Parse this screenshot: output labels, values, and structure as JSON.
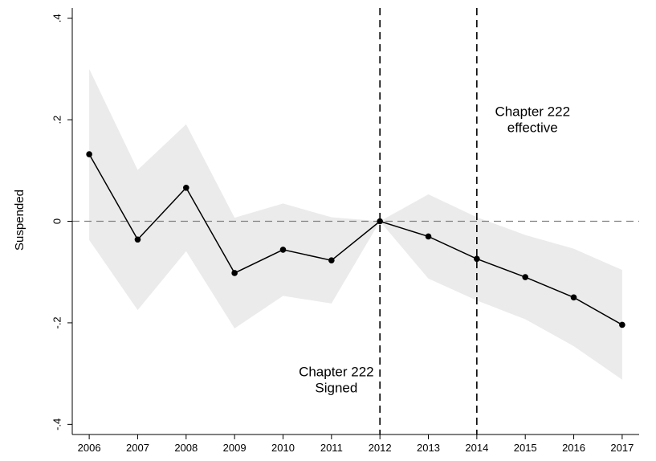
{
  "chart_data": {
    "type": "line",
    "title": "",
    "xlabel": "",
    "ylabel": "Suspended",
    "x": [
      2006,
      2007,
      2008,
      2009,
      2010,
      2011,
      2012,
      2013,
      2014,
      2015,
      2016,
      2017
    ],
    "xticks": [
      "2006",
      "2007",
      "2008",
      "2009",
      "2010",
      "2011",
      "2012",
      "2013",
      "2014",
      "2015",
      "2016",
      "2017"
    ],
    "ylim": [
      -0.42,
      0.42
    ],
    "yticks": [
      {
        "value": 0.4,
        "label": ".4"
      },
      {
        "value": 0.2,
        "label": ".2"
      },
      {
        "value": 0,
        "label": "0"
      },
      {
        "value": -0.2,
        "label": "-.2"
      },
      {
        "value": -0.4,
        "label": "-.4"
      }
    ],
    "series": [
      {
        "values": [
          0.132,
          -0.036,
          0.066,
          -0.102,
          -0.056,
          -0.077,
          0.0,
          -0.03,
          -0.074,
          -0.11,
          -0.15,
          -0.204
        ],
        "ci_upper": [
          0.3,
          0.101,
          0.191,
          0.007,
          0.035,
          0.008,
          0.0,
          0.053,
          0.008,
          -0.027,
          -0.054,
          -0.096
        ],
        "ci_lower": [
          -0.037,
          -0.175,
          -0.059,
          -0.211,
          -0.147,
          -0.162,
          0.0,
          -0.113,
          -0.156,
          -0.193,
          -0.246,
          -0.312
        ]
      }
    ],
    "reference_lines": {
      "horizontal": [
        0
      ],
      "vertical": [
        2012,
        2014
      ]
    },
    "annotations": [
      {
        "lines": [
          "Chapter 222",
          "Signed"
        ],
        "x": 2011.1,
        "y": -0.305
      },
      {
        "lines": [
          "Chapter 222",
          "effective"
        ],
        "x": 2015.15,
        "y": 0.207
      }
    ],
    "grid": false,
    "colors": {
      "line": "#000000",
      "ci_band": "#ebebeb",
      "zero_line": "#808080",
      "event_line": "#000000"
    }
  }
}
